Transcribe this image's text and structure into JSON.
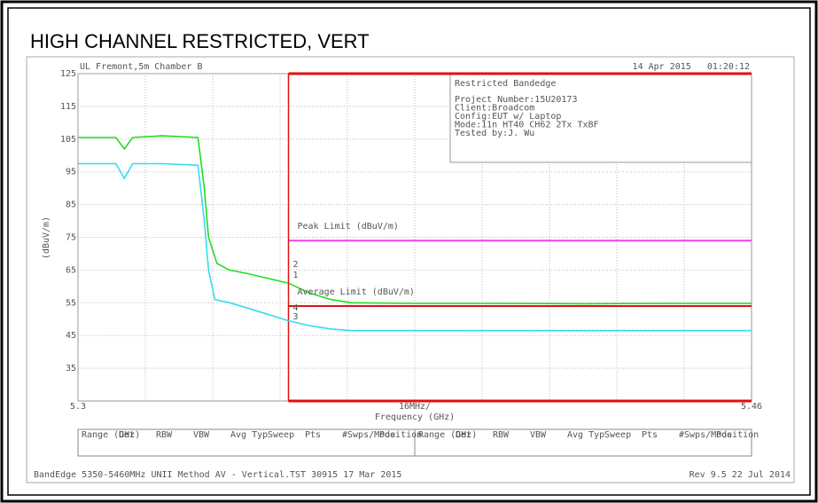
{
  "chart_data": {
    "type": "line",
    "title": "HIGH CHANNEL RESTRICTED, VERT",
    "site": "UL Fremont,5m Chamber B",
    "timestamp": "14 Apr 2015   01:20:12",
    "info_box": {
      "heading": "Restricted Bandedge",
      "lines": [
        "Project Number:15U20173",
        "Client:Broadcom",
        "Config:EUT w/ Laptop",
        "Mode:11n HT40 CH62 2Tx TxBF",
        "Tested by:J. Wu"
      ]
    },
    "y_label": "(dBuV/m)",
    "x_label": "Frequency (GHz)",
    "span_label": "16MHz/",
    "xlim": [
      5.3,
      5.46
    ],
    "xticks": [
      5.3,
      5.46
    ],
    "ylim": [
      25,
      125
    ],
    "yticks": [
      35,
      45,
      55,
      65,
      75,
      85,
      95,
      105,
      115,
      125
    ],
    "grid": true,
    "series": [
      {
        "name": "Peak",
        "color": "#22dd22",
        "x": [
          5.3,
          5.305,
          5.309,
          5.311,
          5.313,
          5.32,
          5.3285,
          5.33,
          5.331,
          5.333,
          5.336,
          5.34,
          5.345,
          5.35,
          5.355,
          5.36,
          5.365,
          5.38,
          5.4,
          5.42,
          5.44,
          5.46
        ],
        "values": [
          105.5,
          105.5,
          105.5,
          102,
          105.5,
          106,
          105.5,
          90,
          75,
          67,
          65,
          64,
          62.5,
          61,
          58,
          56,
          55,
          54.8,
          54.8,
          54.7,
          54.8,
          54.8
        ]
      },
      {
        "name": "Average",
        "color": "#33ddee",
        "x": [
          5.3,
          5.309,
          5.311,
          5.313,
          5.32,
          5.3285,
          5.33,
          5.331,
          5.3325,
          5.336,
          5.34,
          5.345,
          5.35,
          5.355,
          5.36,
          5.365,
          5.4,
          5.43,
          5.46
        ],
        "values": [
          97.5,
          97.5,
          93,
          97.5,
          97.5,
          97,
          80,
          65,
          56,
          55,
          53.5,
          51.5,
          49.5,
          48,
          47,
          46.5,
          46.5,
          46.5,
          46.5
        ]
      },
      {
        "name": "Peak Limit (dBuV/m)",
        "color": "#ee44ee",
        "x": [
          5.35,
          5.46
        ],
        "values": [
          74,
          74
        ]
      },
      {
        "name": "Average Limit (dBuV/m)",
        "color": "#e01010",
        "x": [
          5.35,
          5.46
        ],
        "values": [
          54,
          54
        ]
      }
    ],
    "vlines": [
      {
        "x": 5.35,
        "color": "#e01010"
      }
    ],
    "markers": [
      {
        "label": "1",
        "x": 5.35,
        "value": 63.5
      },
      {
        "label": "2",
        "x": 5.35,
        "value": 66.7
      },
      {
        "label": "3",
        "x": 5.35,
        "value": 50.8
      },
      {
        "label": "4",
        "x": 5.35,
        "value": 53.5
      }
    ],
    "settings_headers": [
      "Range (GHz)",
      "Det",
      "RBW",
      "VBW",
      "Avg Typ",
      "Sweep",
      "Pts",
      "#Swps/Mode",
      "Position"
    ],
    "footer_left": "BandEdge 5350-5460MHz UNII Method AV - Vertical.TST 30915 17 Mar 2015",
    "footer_right": "Rev 9.5 22 Jul 2014"
  }
}
